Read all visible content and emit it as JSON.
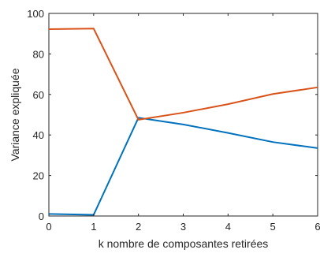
{
  "chart_data": {
    "type": "line",
    "title": "",
    "xlabel": "k nombre de composantes retirées",
    "ylabel": "Variance expliquée",
    "xlim": [
      0,
      6
    ],
    "ylim": [
      0,
      100
    ],
    "x_ticks": [
      "0",
      "1",
      "2",
      "3",
      "4",
      "5",
      "6"
    ],
    "y_ticks": [
      "0",
      "20",
      "40",
      "60",
      "80",
      "100"
    ],
    "grid": false,
    "legend": "none",
    "x": [
      0,
      1,
      2,
      3,
      4,
      5,
      6
    ],
    "series": [
      {
        "color": "#0072BD",
        "values": [
          1.0,
          0.6,
          48.5,
          45.2,
          41.0,
          36.5,
          33.5
        ]
      },
      {
        "color": "#D95319",
        "values": [
          92.2,
          92.5,
          47.5,
          51.0,
          55.2,
          60.2,
          63.5
        ]
      }
    ]
  }
}
